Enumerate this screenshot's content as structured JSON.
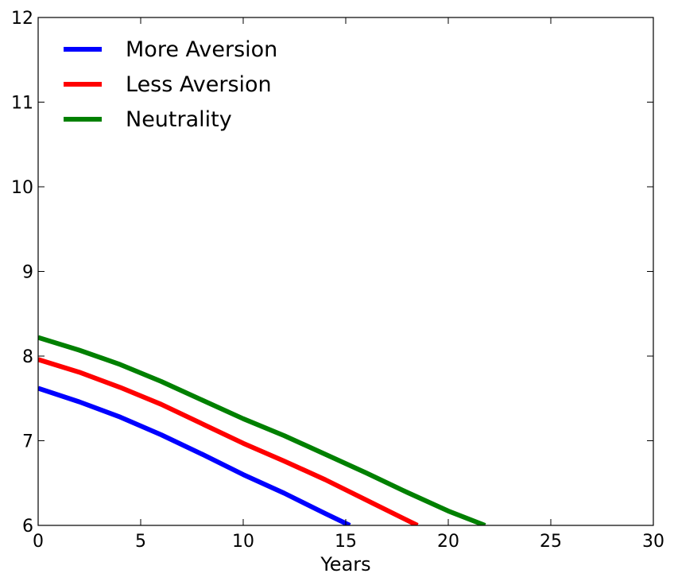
{
  "chart_data": {
    "type": "line",
    "title": "",
    "xlabel": "Years",
    "ylabel": "",
    "xlim": [
      0,
      30
    ],
    "ylim": [
      6,
      12
    ],
    "xticks": [
      0,
      5,
      10,
      15,
      20,
      25,
      30
    ],
    "yticks": [
      6,
      7,
      8,
      9,
      10,
      11,
      12
    ],
    "grid": false,
    "legend_position": "top-left",
    "series": [
      {
        "name": "More Aversion",
        "color": "#0000ff",
        "x": [
          0,
          2,
          4,
          6,
          8,
          10,
          12,
          14,
          15.2
        ],
        "y": [
          7.62,
          7.46,
          7.28,
          7.07,
          6.84,
          6.6,
          6.38,
          6.14,
          6.0
        ]
      },
      {
        "name": "Less Aversion",
        "color": "#ff0000",
        "x": [
          0,
          2,
          4,
          6,
          8,
          10,
          12,
          14,
          16,
          18.5
        ],
        "y": [
          7.96,
          7.81,
          7.63,
          7.43,
          7.2,
          6.97,
          6.76,
          6.54,
          6.3,
          6.0
        ]
      },
      {
        "name": "Neutrality",
        "color": "#008000",
        "x": [
          0,
          2,
          4,
          6,
          8,
          10,
          12,
          14,
          16,
          18,
          20,
          21.8
        ],
        "y": [
          8.22,
          8.07,
          7.9,
          7.7,
          7.48,
          7.26,
          7.06,
          6.84,
          6.62,
          6.39,
          6.17,
          6.0
        ]
      }
    ]
  }
}
